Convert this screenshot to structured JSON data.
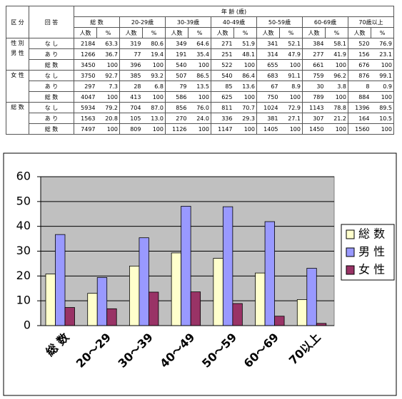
{
  "table": {
    "header": {
      "group_label": "区 分",
      "answer_label": "回 答",
      "age_label": "年 齢 (歳)",
      "columns": [
        "総 数",
        "20-29歳",
        "30-39歳",
        "40-49歳",
        "50-59歳",
        "60-69歳",
        "70歳以上"
      ],
      "sub": [
        "人数",
        "%"
      ]
    },
    "groups": [
      {
        "label": [
          "性 別",
          "男 性"
        ],
        "rows": [
          {
            "answer": "な し",
            "cells": [
              "2184",
              "63.3",
              "319",
              "80.6",
              "349",
              "64.6",
              "271",
              "51.9",
              "341",
              "52.1",
              "384",
              "58.1",
              "520",
              "76.9"
            ]
          },
          {
            "answer": "あ り",
            "cells": [
              "1266",
              "36.7",
              "77",
              "19.4",
              "191",
              "35.4",
              "251",
              "48.1",
              "314",
              "47.9",
              "277",
              "41.9",
              "156",
              "23.1"
            ]
          },
          {
            "answer": "総 数",
            "cells": [
              "3450",
              "100",
              "396",
              "100",
              "540",
              "100",
              "522",
              "100",
              "655",
              "100",
              "661",
              "100",
              "676",
              "100"
            ]
          }
        ]
      },
      {
        "label": [
          "女 性"
        ],
        "rows": [
          {
            "answer": "な し",
            "cells": [
              "3750",
              "92.7",
              "385",
              "93.2",
              "507",
              "86.5",
              "540",
              "86.4",
              "683",
              "91.1",
              "759",
              "96.2",
              "876",
              "99.1"
            ]
          },
          {
            "answer": "あ り",
            "cells": [
              "297",
              "7.3",
              "28",
              "6.8",
              "79",
              "13.5",
              "85",
              "13.6",
              "67",
              "8.9",
              "30",
              "3.8",
              "8",
              "0.9"
            ]
          },
          {
            "answer": "総 数",
            "cells": [
              "4047",
              "100",
              "413",
              "100",
              "586",
              "100",
              "625",
              "100",
              "750",
              "100",
              "789",
              "100",
              "884",
              "100"
            ]
          }
        ]
      },
      {
        "label": [
          "総 数"
        ],
        "rows": [
          {
            "answer": "な し",
            "cells": [
              "5934",
              "79.2",
              "704",
              "87.0",
              "856",
              "76.0",
              "811",
              "70.7",
              "1024",
              "72.9",
              "1143",
              "78.8",
              "1396",
              "89.5"
            ]
          },
          {
            "answer": "あ り",
            "cells": [
              "1563",
              "20.8",
              "105",
              "13.0",
              "270",
              "24.0",
              "336",
              "29.3",
              "381",
              "27.1",
              "307",
              "21.2",
              "164",
              "10.5"
            ]
          },
          {
            "answer": "総 数",
            "cells": [
              "7497",
              "100",
              "809",
              "100",
              "1126",
              "100",
              "1147",
              "100",
              "1405",
              "100",
              "1450",
              "100",
              "1560",
              "100"
            ]
          }
        ]
      }
    ]
  },
  "chart_data": {
    "type": "bar",
    "categories": [
      "総 数",
      "20～29",
      "30～39",
      "40～49",
      "50～59",
      "60～69",
      "70以上"
    ],
    "series": [
      {
        "name": "総 数",
        "color": "#ffffcc",
        "values": [
          20.8,
          13.0,
          24.0,
          29.3,
          27.1,
          21.2,
          10.5
        ]
      },
      {
        "name": "男 性",
        "color": "#9999ff",
        "values": [
          36.7,
          19.4,
          35.4,
          48.1,
          47.9,
          41.9,
          23.1
        ]
      },
      {
        "name": "女 性",
        "color": "#993366",
        "values": [
          7.3,
          6.8,
          13.5,
          13.6,
          8.9,
          3.8,
          0.9
        ]
      }
    ],
    "ylim": [
      0,
      60
    ],
    "yticks": [
      0,
      10,
      20,
      30,
      40,
      50,
      60
    ],
    "grid": true,
    "legend": "right",
    "plot_background": "#c0c0c0"
  }
}
